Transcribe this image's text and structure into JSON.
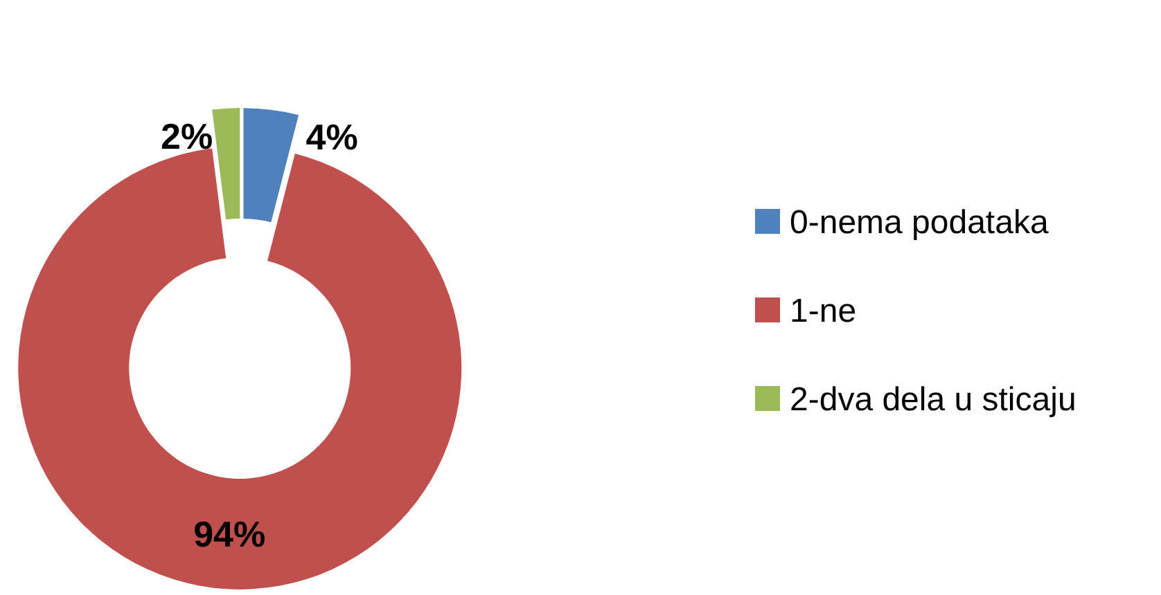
{
  "chart_data": {
    "type": "donut",
    "categories": [
      "0-nema podataka",
      "1-ne",
      "2-dva dela u sticaju"
    ],
    "values": [
      4,
      94,
      2
    ],
    "colors": [
      "#4f81bd",
      "#c0504d",
      "#9bbb59"
    ],
    "value_labels": [
      "4%",
      "94%",
      "2%"
    ],
    "legend": "right"
  }
}
